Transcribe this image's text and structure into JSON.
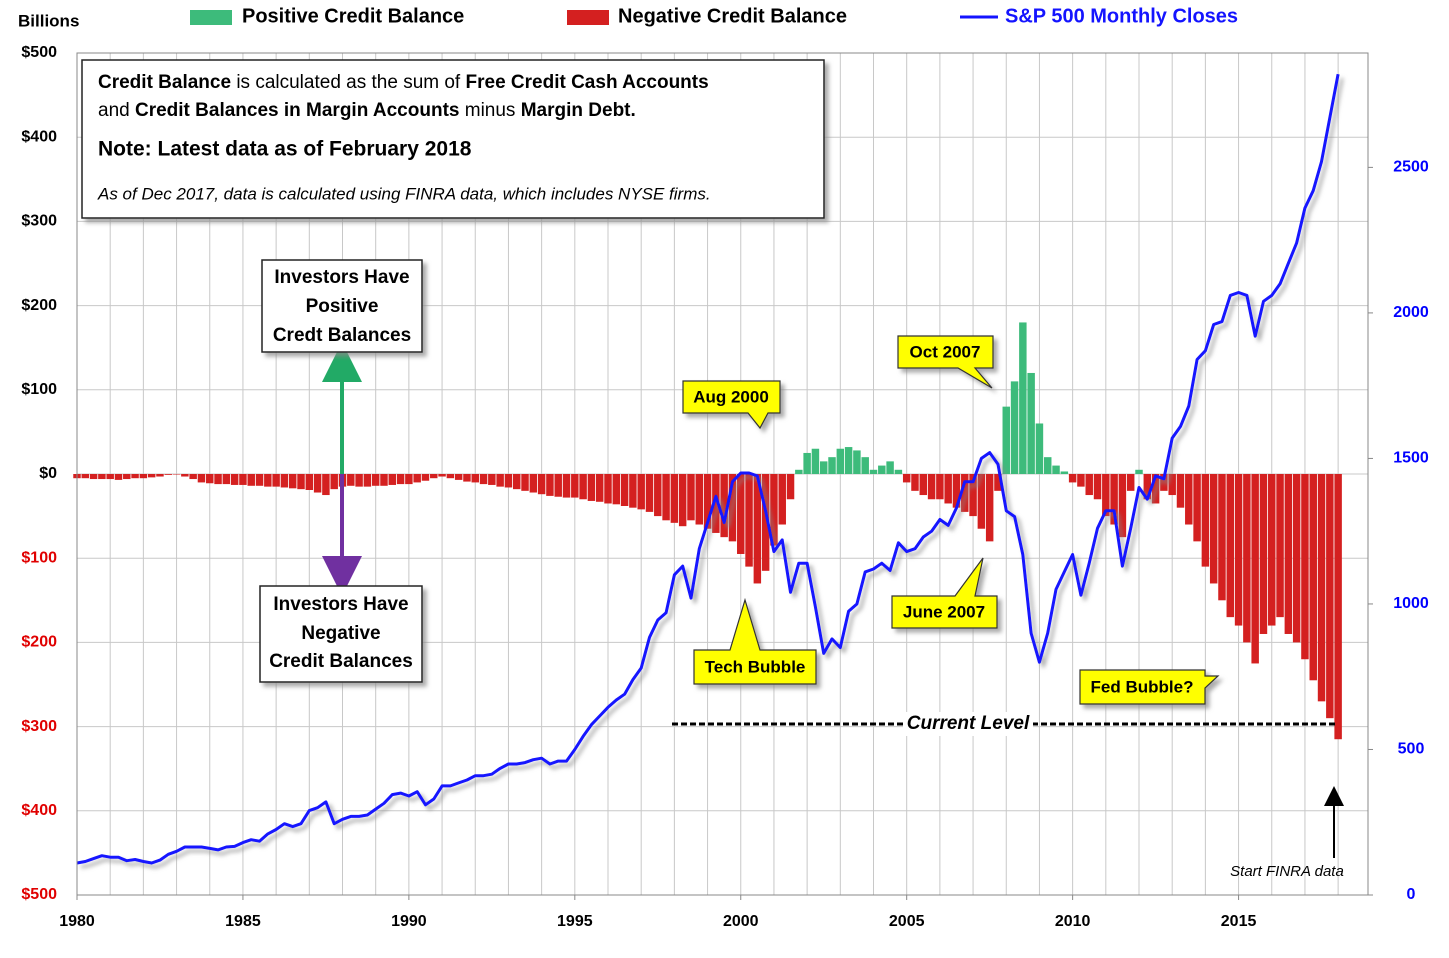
{
  "chart_data": {
    "type": "bar-line",
    "y_axis_label": "Billions",
    "xlim": [
      1980,
      2018.9
    ],
    "xticks": [
      1980,
      1985,
      1990,
      1995,
      2000,
      2005,
      2010,
      2015
    ],
    "ylim": [
      -500,
      500
    ],
    "yticks": [
      {
        "value": 500,
        "label": "$500"
      },
      {
        "value": 400,
        "label": "$400"
      },
      {
        "value": 300,
        "label": "$300"
      },
      {
        "value": 200,
        "label": "$200"
      },
      {
        "value": 100,
        "label": "$100"
      },
      {
        "value": 0,
        "label": "$0"
      },
      {
        "value": -100,
        "label": "$100"
      },
      {
        "value": -200,
        "label": "$200"
      },
      {
        "value": -300,
        "label": "$300"
      },
      {
        "value": -400,
        "label": "$400"
      },
      {
        "value": -500,
        "label": "$500"
      }
    ],
    "negative_tick_color": "#e00000",
    "y2lim": [
      0,
      2893
    ],
    "y2ticks": [
      0,
      500,
      1000,
      1500,
      2000,
      2500
    ],
    "y2_tick_color": "#0000ff",
    "grid": true,
    "x": [
      1980,
      1980.25,
      1980.5,
      1980.75,
      1981,
      1981.25,
      1981.5,
      1981.75,
      1982,
      1982.25,
      1982.5,
      1982.75,
      1983,
      1983.25,
      1983.5,
      1983.75,
      1984,
      1984.25,
      1984.5,
      1984.75,
      1985,
      1985.25,
      1985.5,
      1985.75,
      1986,
      1986.25,
      1986.5,
      1986.75,
      1987,
      1987.25,
      1987.5,
      1987.75,
      1988,
      1988.25,
      1988.5,
      1988.75,
      1989,
      1989.25,
      1989.5,
      1989.75,
      1990,
      1990.25,
      1990.5,
      1990.75,
      1991,
      1991.25,
      1991.5,
      1991.75,
      1992,
      1992.25,
      1992.5,
      1992.75,
      1993,
      1993.25,
      1993.5,
      1993.75,
      1994,
      1994.25,
      1994.5,
      1994.75,
      1995,
      1995.25,
      1995.5,
      1995.75,
      1996,
      1996.25,
      1996.5,
      1996.75,
      1997,
      1997.25,
      1997.5,
      1997.75,
      1998,
      1998.25,
      1998.5,
      1998.75,
      1999,
      1999.25,
      1999.5,
      1999.75,
      2000,
      2000.25,
      2000.5,
      2000.75,
      2001,
      2001.25,
      2001.5,
      2001.75,
      2002,
      2002.25,
      2002.5,
      2002.75,
      2003,
      2003.25,
      2003.5,
      2003.75,
      2004,
      2004.25,
      2004.5,
      2004.75,
      2005,
      2005.25,
      2005.5,
      2005.75,
      2006,
      2006.25,
      2006.5,
      2006.75,
      2007,
      2007.25,
      2007.5,
      2007.75,
      2008,
      2008.25,
      2008.5,
      2008.75,
      2009,
      2009.25,
      2009.5,
      2009.75,
      2010,
      2010.25,
      2010.5,
      2010.75,
      2011,
      2011.25,
      2011.5,
      2011.75,
      2012,
      2012.25,
      2012.5,
      2012.75,
      2013,
      2013.25,
      2013.5,
      2013.75,
      2014,
      2014.25,
      2014.5,
      2014.75,
      2015,
      2015.25,
      2015.5,
      2015.75,
      2016,
      2016.25,
      2016.5,
      2016.75,
      2017,
      2017.25,
      2017.5,
      2017.75,
      2018
    ],
    "series": [
      {
        "name": "Positive Credit Balance",
        "color": "#3dbb7b",
        "values": [
          null,
          null,
          null,
          null,
          null,
          null,
          null,
          null,
          null,
          null,
          null,
          null,
          null,
          null,
          null,
          null,
          null,
          null,
          null,
          null,
          null,
          null,
          null,
          null,
          null,
          null,
          null,
          null,
          null,
          null,
          null,
          null,
          null,
          null,
          null,
          null,
          null,
          null,
          null,
          null,
          null,
          null,
          null,
          null,
          null,
          null,
          null,
          null,
          null,
          null,
          null,
          null,
          null,
          null,
          null,
          null,
          null,
          null,
          null,
          null,
          null,
          null,
          null,
          null,
          null,
          null,
          null,
          null,
          null,
          null,
          null,
          null,
          null,
          null,
          null,
          null,
          null,
          null,
          null,
          null,
          null,
          null,
          null,
          null,
          null,
          null,
          null,
          5,
          25,
          30,
          15,
          20,
          30,
          32,
          28,
          20,
          5,
          10,
          15,
          5,
          null,
          null,
          null,
          null,
          null,
          null,
          null,
          null,
          null,
          null,
          null,
          null,
          80,
          110,
          180,
          120,
          60,
          20,
          10,
          3,
          null,
          null,
          null,
          null,
          null,
          null,
          null,
          null,
          5,
          null,
          null,
          null,
          null,
          null,
          null,
          null,
          null,
          null,
          null,
          null,
          null,
          null,
          null,
          null,
          null,
          null,
          null,
          null,
          null,
          null,
          null,
          null,
          null
        ]
      },
      {
        "name": "Negative Credit Balance",
        "color": "#d42020",
        "values": [
          -5,
          -5,
          -6,
          -6,
          -6,
          -7,
          -6,
          -5,
          -5,
          -4,
          -3,
          -1,
          0,
          -3,
          -6,
          -10,
          -11,
          -12,
          -12,
          -13,
          -13,
          -14,
          -14,
          -15,
          -15,
          -16,
          -17,
          -18,
          -19,
          -22,
          -25,
          -18,
          -15,
          -14,
          -15,
          -15,
          -14,
          -14,
          -13,
          -12,
          -12,
          -10,
          -8,
          -5,
          -3,
          -5,
          -7,
          -9,
          -10,
          -12,
          -13,
          -15,
          -16,
          -18,
          -20,
          -22,
          -24,
          -26,
          -27,
          -28,
          -28,
          -30,
          -32,
          -33,
          -35,
          -36,
          -38,
          -40,
          -42,
          -45,
          -50,
          -55,
          -58,
          -62,
          -55,
          -60,
          -65,
          -70,
          -75,
          -80,
          -95,
          -110,
          -130,
          -115,
          -85,
          -60,
          -30,
          null,
          null,
          null,
          null,
          null,
          null,
          null,
          null,
          null,
          null,
          null,
          null,
          null,
          -10,
          -20,
          -25,
          -30,
          -30,
          -35,
          -40,
          -45,
          -50,
          -65,
          -80,
          -20,
          null,
          null,
          null,
          null,
          null,
          null,
          null,
          null,
          -10,
          -15,
          -25,
          -30,
          -50,
          -60,
          -75,
          -20,
          null,
          -30,
          -35,
          -20,
          -25,
          -40,
          -60,
          -80,
          -110,
          -130,
          -150,
          -170,
          -180,
          -200,
          -225,
          -190,
          -180,
          -170,
          -190,
          -200,
          -220,
          -245,
          -270,
          -290,
          -315
        ]
      },
      {
        "name": "S&P 500 Monthly Closes",
        "color": "#1414ff",
        "axis": "y2",
        "values": [
          110,
          115,
          125,
          135,
          130,
          130,
          118,
          122,
          115,
          110,
          120,
          140,
          150,
          165,
          165,
          165,
          160,
          155,
          165,
          167,
          180,
          190,
          185,
          210,
          225,
          245,
          235,
          245,
          290,
          300,
          320,
          245,
          260,
          270,
          270,
          275,
          295,
          315,
          345,
          350,
          340,
          355,
          310,
          330,
          375,
          375,
          385,
          395,
          410,
          410,
          415,
          435,
          450,
          450,
          455,
          465,
          470,
          450,
          460,
          460,
          500,
          545,
          585,
          615,
          645,
          670,
          690,
          740,
          780,
          885,
          945,
          970,
          1100,
          1130,
          1020,
          1190,
          1280,
          1370,
          1280,
          1420,
          1450,
          1450,
          1440,
          1320,
          1180,
          1220,
          1040,
          1140,
          1140,
          990,
          830,
          880,
          850,
          975,
          1000,
          1110,
          1120,
          1140,
          1115,
          1210,
          1180,
          1190,
          1230,
          1250,
          1290,
          1270,
          1330,
          1420,
          1420,
          1500,
          1520,
          1480,
          1320,
          1300,
          1170,
          900,
          800,
          900,
          1050,
          1110,
          1170,
          1030,
          1140,
          1260,
          1320,
          1320,
          1130,
          1260,
          1400,
          1360,
          1440,
          1430,
          1570,
          1610,
          1680,
          1840,
          1870,
          1960,
          1970,
          2060,
          2070,
          2060,
          1920,
          2040,
          2060,
          2100,
          2170,
          2240,
          2360,
          2420,
          2520,
          2670,
          2820
        ]
      }
    ],
    "definition": [
      [
        "Credit Balance",
        " is calculated as the sum of ",
        "Free Credit Cash Accounts"
      ],
      [
        "and ",
        "Credit Balances in Margin Accounts",
        " minus ",
        "Margin Debt."
      ]
    ],
    "note": "Note: Latest data as of February 2018",
    "finra_note": "As of Dec 2017, data is calculated using FINRA data, which includes NYSE firms.",
    "positive_box": [
      "Investors Have",
      "Positive",
      "Credt Balances"
    ],
    "negative_box": [
      "Investors Have",
      "Negative",
      "Credit Balances"
    ],
    "callouts": [
      "Aug 2000",
      "Oct 2007",
      "Tech Bubble",
      "June 2007",
      "Fed Bubble?"
    ],
    "current_level": "Current Level",
    "finra_start": "Start FINRA data"
  }
}
